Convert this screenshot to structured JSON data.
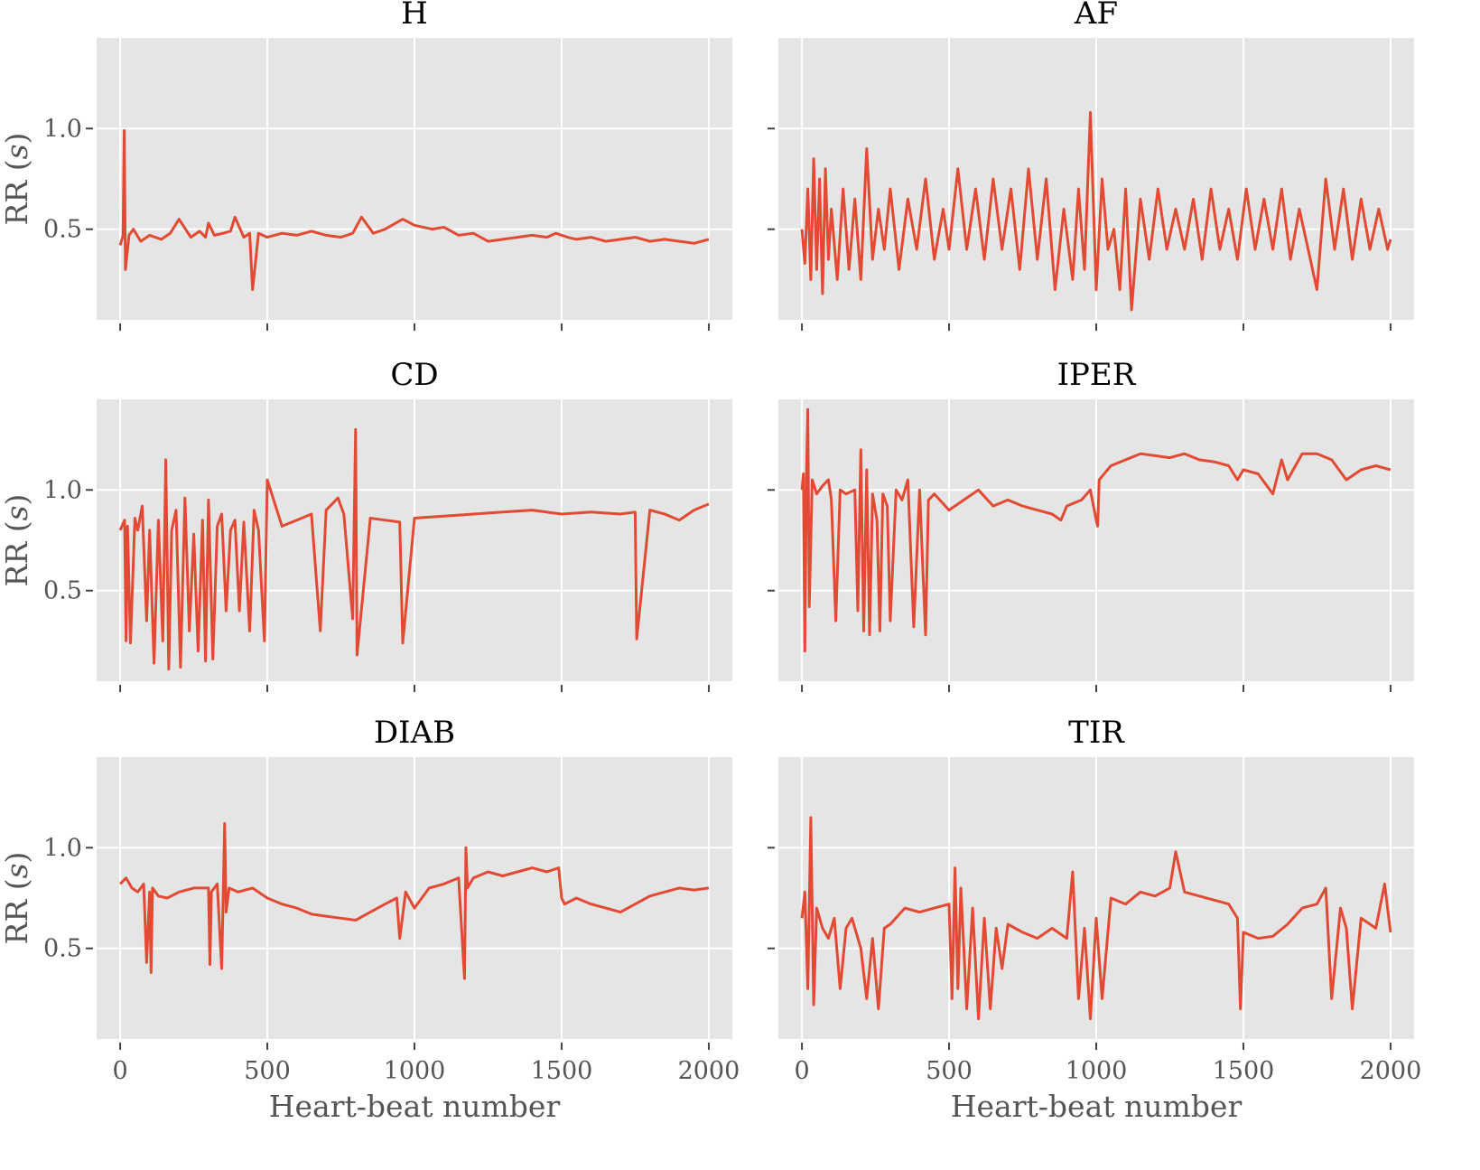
{
  "figure": {
    "y_axis_label_prefix": "RR (",
    "y_axis_label_unit": "s",
    "y_axis_label_suffix": ")",
    "x_axis_label": "Heart-beat number",
    "line_color": "#e24a33",
    "background_color": "#e5e5e5"
  },
  "chart_data": [
    {
      "type": "line",
      "title": "H",
      "xlabel": "",
      "ylabel": "RR (s)",
      "xlim": [
        -80,
        2080
      ],
      "ylim": [
        0.05,
        1.45
      ],
      "xticks": [
        0,
        500,
        1000,
        1500,
        2000
      ],
      "yticks": [
        0.5,
        1.0
      ],
      "grid": true,
      "series": [
        {
          "x": [
            0,
            10,
            14,
            18,
            30,
            45,
            70,
            100,
            140,
            170,
            200,
            240,
            270,
            290,
            300,
            320,
            350,
            375,
            390,
            420,
            440,
            450,
            470,
            500,
            550,
            600,
            650,
            700,
            750,
            790,
            820,
            860,
            900,
            960,
            1000,
            1060,
            1100,
            1150,
            1200,
            1250,
            1300,
            1350,
            1400,
            1450,
            1480,
            1520,
            1550,
            1600,
            1650,
            1700,
            1750,
            1800,
            1850,
            1900,
            1950,
            2000
          ],
          "y": [
            0.42,
            0.47,
            0.99,
            0.3,
            0.47,
            0.5,
            0.44,
            0.47,
            0.45,
            0.48,
            0.55,
            0.46,
            0.49,
            0.46,
            0.53,
            0.47,
            0.48,
            0.49,
            0.56,
            0.46,
            0.48,
            0.2,
            0.48,
            0.46,
            0.48,
            0.47,
            0.49,
            0.47,
            0.46,
            0.48,
            0.56,
            0.48,
            0.5,
            0.55,
            0.52,
            0.5,
            0.51,
            0.47,
            0.48,
            0.44,
            0.45,
            0.46,
            0.47,
            0.46,
            0.48,
            0.46,
            0.45,
            0.46,
            0.44,
            0.45,
            0.46,
            0.44,
            0.45,
            0.44,
            0.43,
            0.45
          ]
        }
      ]
    },
    {
      "type": "line",
      "title": "AF",
      "xlabel": "",
      "ylabel": "",
      "xlim": [
        -80,
        2080
      ],
      "ylim": [
        0.05,
        1.45
      ],
      "xticks": [
        0,
        500,
        1000,
        1500,
        2000
      ],
      "yticks": [
        0.5,
        1.0
      ],
      "grid": true,
      "series": [
        {
          "x": [
            0,
            10,
            20,
            30,
            40,
            50,
            60,
            70,
            80,
            90,
            100,
            120,
            140,
            160,
            180,
            200,
            220,
            240,
            260,
            280,
            300,
            330,
            360,
            390,
            420,
            450,
            480,
            500,
            530,
            560,
            590,
            620,
            650,
            680,
            710,
            740,
            770,
            800,
            830,
            860,
            890,
            920,
            940,
            960,
            980,
            1000,
            1020,
            1040,
            1060,
            1080,
            1100,
            1120,
            1150,
            1180,
            1210,
            1240,
            1270,
            1300,
            1330,
            1360,
            1390,
            1420,
            1450,
            1480,
            1510,
            1540,
            1570,
            1600,
            1630,
            1660,
            1690,
            1720,
            1750,
            1780,
            1810,
            1840,
            1870,
            1900,
            1930,
            1960,
            1990,
            2000
          ],
          "y": [
            0.5,
            0.33,
            0.7,
            0.25,
            0.85,
            0.3,
            0.75,
            0.18,
            0.8,
            0.35,
            0.6,
            0.25,
            0.7,
            0.3,
            0.65,
            0.25,
            0.9,
            0.35,
            0.6,
            0.4,
            0.7,
            0.3,
            0.65,
            0.4,
            0.75,
            0.35,
            0.6,
            0.4,
            0.8,
            0.4,
            0.7,
            0.35,
            0.75,
            0.4,
            0.7,
            0.3,
            0.8,
            0.35,
            0.75,
            0.2,
            0.6,
            0.25,
            0.7,
            0.3,
            1.08,
            0.2,
            0.75,
            0.4,
            0.5,
            0.2,
            0.7,
            0.1,
            0.65,
            0.35,
            0.7,
            0.4,
            0.6,
            0.4,
            0.65,
            0.35,
            0.7,
            0.4,
            0.6,
            0.35,
            0.7,
            0.4,
            0.65,
            0.4,
            0.7,
            0.35,
            0.6,
            0.4,
            0.2,
            0.75,
            0.4,
            0.7,
            0.35,
            0.65,
            0.4,
            0.6,
            0.4,
            0.45
          ]
        }
      ]
    },
    {
      "type": "line",
      "title": "CD",
      "xlabel": "",
      "ylabel": "RR (s)",
      "xlim": [
        -80,
        2080
      ],
      "ylim": [
        0.05,
        1.45
      ],
      "xticks": [
        0,
        500,
        1000,
        1500,
        2000
      ],
      "yticks": [
        0.5,
        1.0
      ],
      "grid": true,
      "series": [
        {
          "x": [
            0,
            15,
            20,
            25,
            35,
            50,
            60,
            75,
            90,
            100,
            115,
            130,
            145,
            155,
            165,
            175,
            190,
            205,
            220,
            235,
            250,
            265,
            280,
            290,
            300,
            315,
            330,
            345,
            360,
            375,
            390,
            405,
            420,
            440,
            455,
            470,
            490,
            500,
            550,
            600,
            650,
            680,
            700,
            740,
            760,
            790,
            800,
            805,
            850,
            900,
            950,
            960,
            1000,
            1100,
            1200,
            1300,
            1400,
            1500,
            1600,
            1700,
            1750,
            1755,
            1800,
            1850,
            1900,
            1950,
            2000
          ],
          "y": [
            0.8,
            0.85,
            0.25,
            0.82,
            0.24,
            0.86,
            0.8,
            0.92,
            0.35,
            0.8,
            0.14,
            0.85,
            0.25,
            1.15,
            0.11,
            0.8,
            0.9,
            0.12,
            0.96,
            0.3,
            0.78,
            0.2,
            0.85,
            0.15,
            0.95,
            0.16,
            0.82,
            0.88,
            0.4,
            0.8,
            0.85,
            0.4,
            0.84,
            0.3,
            0.9,
            0.8,
            0.25,
            1.05,
            0.82,
            0.85,
            0.88,
            0.3,
            0.9,
            0.96,
            0.88,
            0.36,
            1.3,
            0.18,
            0.86,
            0.85,
            0.84,
            0.24,
            0.86,
            0.87,
            0.88,
            0.89,
            0.9,
            0.88,
            0.89,
            0.88,
            0.89,
            0.26,
            0.9,
            0.88,
            0.85,
            0.9,
            0.93
          ]
        }
      ]
    },
    {
      "type": "line",
      "title": "IPER",
      "xlabel": "",
      "ylabel": "",
      "xlim": [
        -80,
        2080
      ],
      "ylim": [
        0.05,
        1.45
      ],
      "xticks": [
        0,
        500,
        1000,
        1500,
        2000
      ],
      "yticks": [
        0.5,
        1.0
      ],
      "grid": true,
      "series": [
        {
          "x": [
            0,
            5,
            10,
            15,
            20,
            25,
            35,
            50,
            70,
            90,
            100,
            115,
            130,
            150,
            180,
            190,
            200,
            210,
            220,
            230,
            240,
            255,
            265,
            275,
            290,
            300,
            320,
            340,
            360,
            380,
            400,
            420,
            430,
            450,
            500,
            550,
            600,
            650,
            700,
            750,
            800,
            850,
            880,
            900,
            950,
            980,
            1000,
            1005,
            1010,
            1050,
            1100,
            1150,
            1200,
            1250,
            1300,
            1350,
            1400,
            1450,
            1480,
            1500,
            1550,
            1600,
            1630,
            1650,
            1700,
            1750,
            1800,
            1850,
            1900,
            1950,
            2000
          ],
          "y": [
            1.0,
            1.08,
            0.2,
            1.05,
            1.4,
            0.42,
            1.05,
            0.98,
            1.02,
            1.05,
            0.95,
            0.35,
            1.0,
            0.98,
            1.0,
            0.4,
            1.2,
            0.3,
            1.1,
            0.28,
            0.98,
            0.85,
            0.3,
            0.98,
            0.92,
            0.35,
            1.0,
            0.95,
            1.05,
            0.32,
            1.0,
            0.28,
            0.95,
            0.98,
            0.9,
            0.95,
            1.0,
            0.92,
            0.95,
            0.92,
            0.9,
            0.88,
            0.85,
            0.92,
            0.95,
            1.0,
            0.85,
            0.82,
            1.05,
            1.12,
            1.15,
            1.18,
            1.17,
            1.16,
            1.18,
            1.15,
            1.14,
            1.12,
            1.05,
            1.1,
            1.08,
            0.98,
            1.15,
            1.05,
            1.18,
            1.18,
            1.15,
            1.05,
            1.1,
            1.12,
            1.1
          ]
        }
      ]
    },
    {
      "type": "line",
      "title": "DIAB",
      "xlabel": "Heart-beat number",
      "ylabel": "RR (s)",
      "xlim": [
        -80,
        2080
      ],
      "ylim": [
        0.05,
        1.45
      ],
      "xticks": [
        0,
        500,
        1000,
        1500,
        2000
      ],
      "yticks": [
        0.5,
        1.0
      ],
      "grid": true,
      "series": [
        {
          "x": [
            0,
            20,
            40,
            60,
            80,
            90,
            100,
            105,
            110,
            130,
            160,
            200,
            250,
            300,
            305,
            310,
            330,
            345,
            355,
            360,
            370,
            400,
            450,
            500,
            550,
            600,
            650,
            700,
            750,
            800,
            850,
            900,
            940,
            950,
            970,
            1000,
            1050,
            1100,
            1150,
            1170,
            1175,
            1180,
            1200,
            1250,
            1300,
            1350,
            1400,
            1450,
            1490,
            1500,
            1510,
            1550,
            1600,
            1650,
            1700,
            1750,
            1800,
            1850,
            1900,
            1950,
            2000
          ],
          "y": [
            0.82,
            0.85,
            0.8,
            0.78,
            0.82,
            0.43,
            0.78,
            0.38,
            0.8,
            0.76,
            0.75,
            0.78,
            0.8,
            0.8,
            0.42,
            0.78,
            0.82,
            0.4,
            1.12,
            0.68,
            0.8,
            0.78,
            0.8,
            0.75,
            0.72,
            0.7,
            0.67,
            0.66,
            0.65,
            0.64,
            0.68,
            0.72,
            0.75,
            0.55,
            0.78,
            0.7,
            0.8,
            0.82,
            0.85,
            0.35,
            1.0,
            0.8,
            0.85,
            0.88,
            0.86,
            0.88,
            0.9,
            0.88,
            0.9,
            0.75,
            0.72,
            0.75,
            0.72,
            0.7,
            0.68,
            0.72,
            0.76,
            0.78,
            0.8,
            0.79,
            0.8
          ]
        }
      ]
    },
    {
      "type": "line",
      "title": "TIR",
      "xlabel": "Heart-beat number",
      "ylabel": "",
      "xlim": [
        -80,
        2080
      ],
      "ylim": [
        0.05,
        1.45
      ],
      "xticks": [
        0,
        500,
        1000,
        1500,
        2000
      ],
      "yticks": [
        0.5,
        1.0
      ],
      "grid": true,
      "series": [
        {
          "x": [
            0,
            10,
            20,
            30,
            40,
            50,
            70,
            90,
            110,
            130,
            150,
            170,
            200,
            220,
            240,
            260,
            280,
            300,
            350,
            400,
            450,
            500,
            510,
            520,
            530,
            540,
            560,
            580,
            600,
            620,
            640,
            660,
            680,
            700,
            750,
            800,
            850,
            900,
            920,
            940,
            960,
            980,
            1000,
            1020,
            1050,
            1100,
            1150,
            1200,
            1250,
            1270,
            1300,
            1350,
            1400,
            1450,
            1480,
            1490,
            1500,
            1550,
            1600,
            1650,
            1700,
            1750,
            1780,
            1800,
            1830,
            1850,
            1870,
            1900,
            1950,
            1980,
            2000
          ],
          "y": [
            0.65,
            0.78,
            0.3,
            1.15,
            0.22,
            0.7,
            0.6,
            0.55,
            0.65,
            0.3,
            0.6,
            0.65,
            0.5,
            0.25,
            0.55,
            0.2,
            0.6,
            0.62,
            0.7,
            0.68,
            0.7,
            0.72,
            0.25,
            0.9,
            0.3,
            0.8,
            0.2,
            0.7,
            0.15,
            0.65,
            0.2,
            0.6,
            0.4,
            0.62,
            0.58,
            0.55,
            0.6,
            0.55,
            0.88,
            0.25,
            0.6,
            0.15,
            0.65,
            0.25,
            0.75,
            0.72,
            0.78,
            0.76,
            0.8,
            0.98,
            0.78,
            0.76,
            0.74,
            0.72,
            0.65,
            0.2,
            0.58,
            0.55,
            0.56,
            0.62,
            0.7,
            0.72,
            0.8,
            0.25,
            0.7,
            0.6,
            0.2,
            0.65,
            0.6,
            0.82,
            0.58
          ]
        }
      ]
    }
  ]
}
